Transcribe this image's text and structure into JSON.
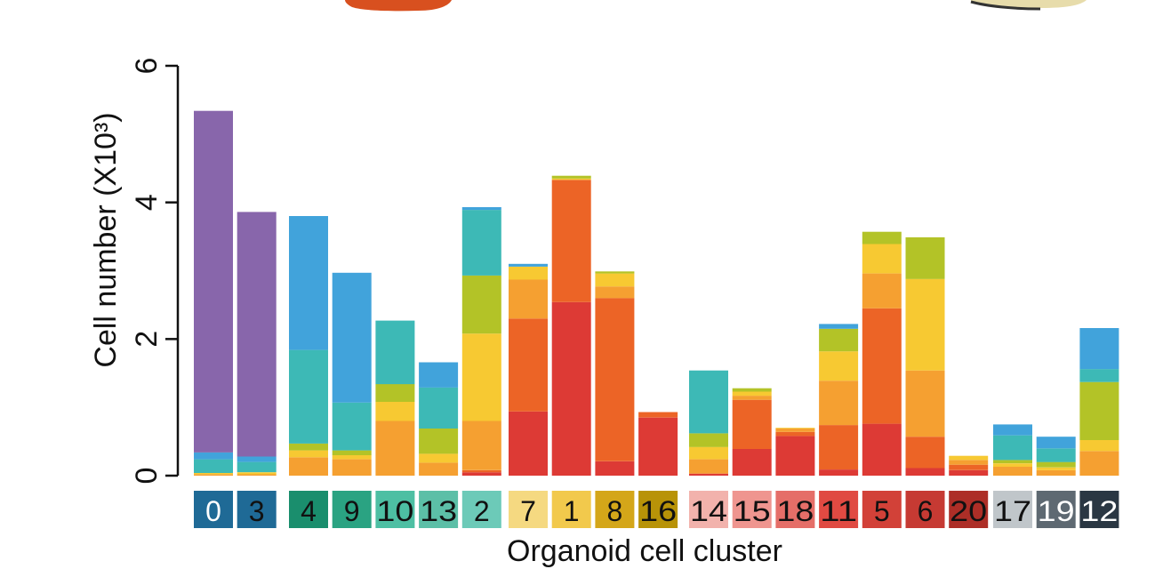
{
  "chart_data": {
    "type": "bar",
    "stacked": true,
    "xlabel": "Organoid cell cluster",
    "ylabel": "Cell number (X10³)",
    "ylim": [
      0,
      6
    ],
    "yticks": [
      "0",
      "2",
      "4",
      "6"
    ],
    "grid": false,
    "legend": "none",
    "segment_colors": [
      "#dd3a35",
      "#ec6426",
      "#f5a031",
      "#f7c932",
      "#b3c327",
      "#3db9b6",
      "#41a3db",
      "#8866ab"
    ],
    "categories": [
      "0",
      "3",
      "4",
      "9",
      "10",
      "13",
      "2",
      "7",
      "1",
      "8",
      "16",
      "14",
      "15",
      "18",
      "11",
      "5",
      "6",
      "20",
      "17",
      "19",
      "12"
    ],
    "label_colors": [
      "#1f6a96",
      "#1f6a96",
      "#1a8e6d",
      "#2aa382",
      "#4dbfa3",
      "#5cbfa7",
      "#6ccab8",
      "#f5d981",
      "#f2c94c",
      "#d4a619",
      "#b89308",
      "#f2b2ac",
      "#ef958f",
      "#e56e68",
      "#e04a42",
      "#d24138",
      "#c63a33",
      "#ad2e27",
      "#c0c6ca",
      "#5e6972",
      "#2a3743"
    ],
    "label_text_colors": [
      "#ffffff",
      "#111111",
      "#111111",
      "#111111",
      "#111111",
      "#111111",
      "#111111",
      "#111111",
      "#111111",
      "#111111",
      "#111111",
      "#111111",
      "#111111",
      "#111111",
      "#111111",
      "#111111",
      "#111111",
      "#111111",
      "#111111",
      "#ffffff",
      "#ffffff"
    ],
    "groups": [
      [
        0,
        1
      ],
      [
        2,
        3,
        4,
        5,
        6
      ],
      [
        7,
        8,
        9,
        10
      ],
      [
        11,
        12,
        13,
        14,
        15,
        16,
        17
      ],
      [
        18,
        19,
        20
      ]
    ],
    "stacks": [
      [
        0.0,
        0.0,
        0.02,
        0.02,
        0.0,
        0.2,
        0.1,
        5.0
      ],
      [
        0.0,
        0.0,
        0.02,
        0.03,
        0.0,
        0.15,
        0.08,
        3.58
      ],
      [
        0.0,
        0.0,
        0.27,
        0.1,
        0.1,
        1.37,
        1.96,
        0.0
      ],
      [
        0.0,
        0.0,
        0.24,
        0.06,
        0.07,
        0.7,
        1.9,
        0.0
      ],
      [
        0.0,
        0.0,
        0.8,
        0.28,
        0.26,
        0.93,
        0.0,
        0.0
      ],
      [
        0.0,
        0.0,
        0.19,
        0.13,
        0.37,
        0.6,
        0.37,
        0.0
      ],
      [
        0.05,
        0.03,
        0.72,
        1.28,
        0.85,
        0.96,
        0.04,
        0.0
      ],
      [
        0.94,
        1.36,
        0.57,
        0.19,
        0.0,
        0.0,
        0.04,
        0.0
      ],
      [
        2.54,
        1.79,
        0.0,
        0.02,
        0.04,
        0.0,
        0.0,
        0.0
      ],
      [
        0.21,
        2.39,
        0.17,
        0.19,
        0.03,
        0.0,
        0.0,
        0.0
      ],
      [
        0.85,
        0.08,
        0.0,
        0.0,
        0.0,
        0.0,
        0.0,
        0.0
      ],
      [
        0.03,
        0.0,
        0.21,
        0.18,
        0.2,
        0.92,
        0.0,
        0.0
      ],
      [
        0.39,
        0.72,
        0.06,
        0.06,
        0.05,
        0.0,
        0.0,
        0.0
      ],
      [
        0.58,
        0.06,
        0.05,
        0.01,
        0.0,
        0.0,
        0.0,
        0.0
      ],
      [
        0.09,
        0.65,
        0.65,
        0.43,
        0.33,
        0.0,
        0.07,
        0.0
      ],
      [
        0.76,
        1.69,
        0.51,
        0.43,
        0.18,
        0.0,
        0.0,
        0.0
      ],
      [
        0.11,
        0.46,
        0.97,
        1.34,
        0.61,
        0.0,
        0.0,
        0.0
      ],
      [
        0.08,
        0.08,
        0.07,
        0.06,
        0.0,
        0.0,
        0.0,
        0.0
      ],
      [
        0.0,
        0.0,
        0.13,
        0.05,
        0.05,
        0.36,
        0.16,
        0.0
      ],
      [
        0.0,
        0.0,
        0.08,
        0.04,
        0.08,
        0.2,
        0.17,
        0.0
      ],
      [
        0.0,
        0.0,
        0.36,
        0.16,
        0.85,
        0.19,
        0.6,
        0.0
      ]
    ]
  }
}
